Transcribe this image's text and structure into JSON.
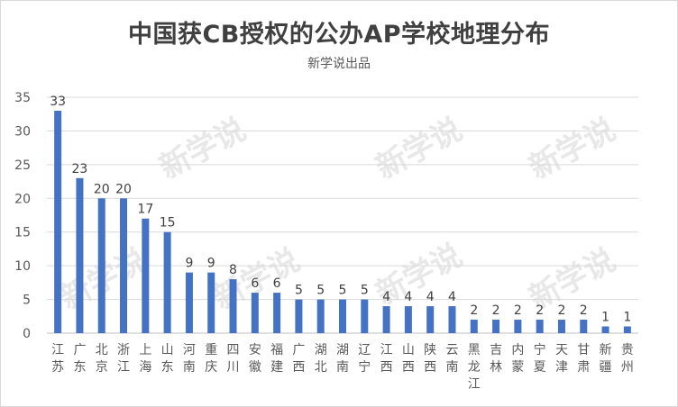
{
  "chart_data": {
    "type": "bar",
    "title": "中国获CB授权的公办AP学校地理分布",
    "subtitle": "新学说出品",
    "watermark": "新学说",
    "categories": [
      "江苏",
      "广东",
      "北京",
      "浙江",
      "上海",
      "山东",
      "河南",
      "重庆",
      "四川",
      "安徽",
      "福建",
      "广西",
      "湖北",
      "湖南",
      "辽宁",
      "江西",
      "山西",
      "陕西",
      "云南",
      "黑龙江",
      "吉林",
      "内蒙",
      "宁夏",
      "天津",
      "甘肃",
      "新疆",
      "贵州"
    ],
    "values": [
      33,
      23,
      20,
      20,
      17,
      15,
      9,
      9,
      8,
      6,
      6,
      5,
      5,
      5,
      5,
      4,
      4,
      4,
      4,
      2,
      2,
      2,
      2,
      2,
      2,
      1,
      1
    ],
    "ylim": [
      0,
      35
    ],
    "yticks": [
      0,
      5,
      10,
      15,
      20,
      25,
      30,
      35
    ],
    "grid": true,
    "bar_color": "#4472c4"
  }
}
